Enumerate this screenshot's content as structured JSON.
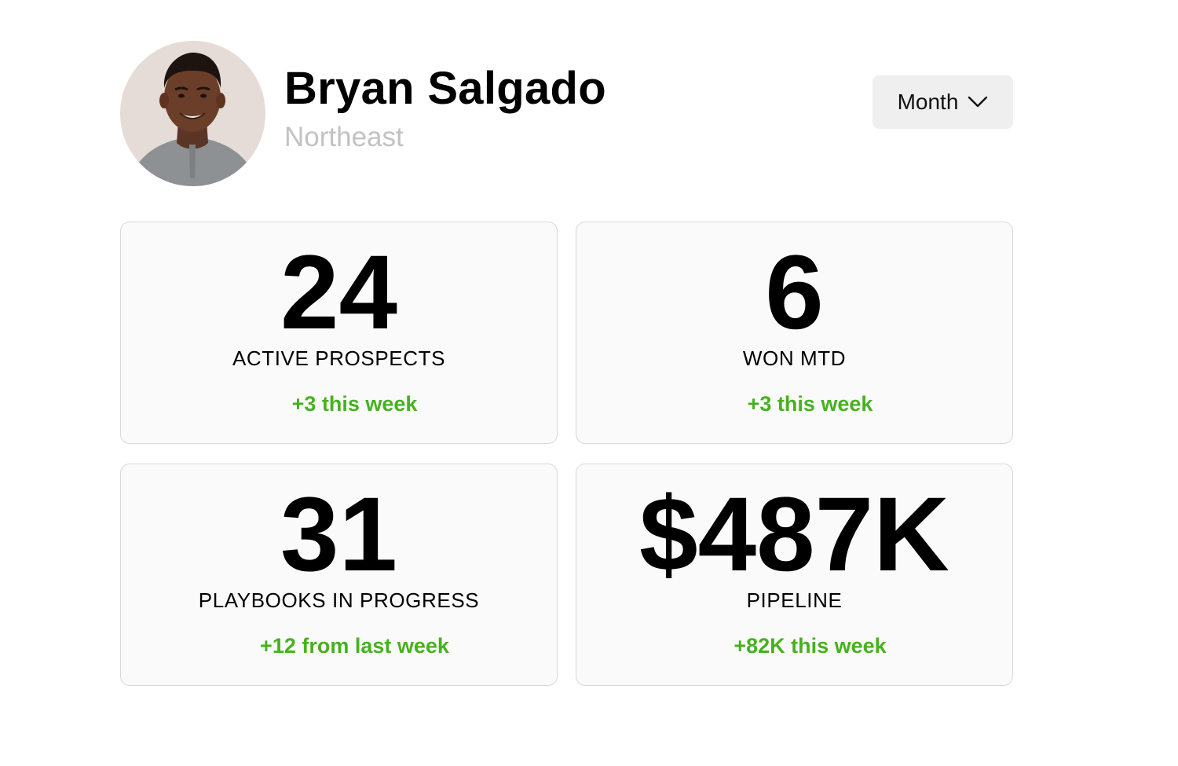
{
  "profile": {
    "name": "Bryan Salgado",
    "region": "Northeast"
  },
  "period_select": {
    "value": "Month",
    "icon": "chevron-down-icon"
  },
  "stats": [
    {
      "value": "24",
      "label": "ACTIVE PROSPECTS",
      "delta": "+3 this week"
    },
    {
      "value": "6",
      "label": "WON MTD",
      "delta": "+3 this week"
    },
    {
      "value": "31",
      "label": "PLAYBOOKS IN PROGRESS",
      "delta": "+12 from last week"
    },
    {
      "value": "$487K",
      "label": "PIPELINE",
      "delta": "+82K this week"
    }
  ],
  "colors": {
    "delta_positive": "#46b21e",
    "card_background": "#fafafa",
    "card_border": "#d9d9d9",
    "region_text": "#c2c2c2",
    "select_background": "#efefef"
  }
}
